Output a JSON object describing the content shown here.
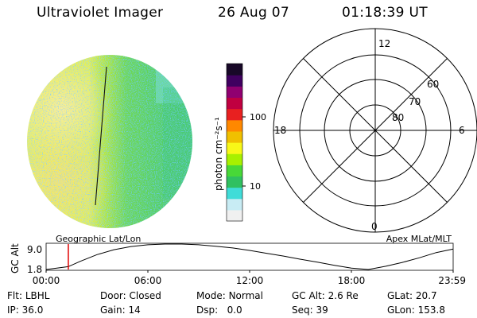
{
  "header": {
    "instrument": "Ultraviolet Imager",
    "date": "26 Aug 07",
    "time": "01:18:39 UT"
  },
  "colorbar": {
    "unit_label": "photon cm⁻²s⁻¹",
    "ticks": [
      {
        "value": 100,
        "label": "100"
      },
      {
        "value": 10,
        "label": "10"
      }
    ],
    "scale": "log",
    "colors": [
      "#f0f0f0",
      "#c8ecf4",
      "#40dcd8",
      "#30c060",
      "#48d838",
      "#a8f000",
      "#f8f818",
      "#f0c000",
      "#ff8800",
      "#e82020",
      "#c00040",
      "#900070",
      "#400060",
      "#180828"
    ]
  },
  "polar_grid": {
    "mlt_labels": {
      "top": "12",
      "left": "18",
      "right": "6",
      "bottom": "0"
    },
    "lat_labels": [
      "60",
      "70",
      "80"
    ]
  },
  "timeline": {
    "left_label": "Geographic Lat/Lon",
    "right_label": "Apex MLat/MLT",
    "y_axis_title": "GC Alt",
    "y_ticks": [
      "9.0",
      "1.8"
    ],
    "x_ticks": [
      "00:00",
      "06:00",
      "12:00",
      "18:00",
      "23:59"
    ],
    "marker_color": "#e00000"
  },
  "chart_data": {
    "type": "line",
    "title": "",
    "xlabel": "",
    "ylabel": "GC Alt",
    "xlim": [
      0,
      24
    ],
    "ylim": [
      1.8,
      9.0
    ],
    "x_tick_labels": [
      "00:00",
      "06:00",
      "12:00",
      "18:00",
      "23:59"
    ],
    "x": [
      0.0,
      1.31,
      2,
      3,
      4,
      5,
      6,
      7,
      8,
      9,
      10,
      11,
      12,
      13,
      14,
      15,
      16,
      17,
      18,
      19,
      20,
      21,
      22,
      23,
      24
    ],
    "y": [
      1.8,
      2.6,
      4.1,
      6.0,
      7.4,
      8.3,
      8.8,
      9.0,
      9.0,
      8.8,
      8.4,
      7.9,
      7.2,
      6.4,
      5.6,
      4.7,
      3.9,
      3.0,
      2.2,
      1.8,
      2.7,
      3.8,
      5.1,
      6.6,
      7.6
    ],
    "current_time": 1.31,
    "grid": false
  },
  "status": {
    "flt_label": "Flt:",
    "flt_value": "LBHL",
    "door_label": "Door:",
    "door_value": "Closed",
    "mode_label": "Mode:",
    "mode_value": "Normal",
    "gcalt_label": "GC Alt:",
    "gcalt_value": "2.6 Re",
    "glat_label": "GLat:",
    "glat_value": "20.7",
    "ip_label": "IP:",
    "ip_value": "36.0",
    "gain_label": "Gain:",
    "gain_value": "14",
    "dsp_label": "Dsp:",
    "dsp_value": "0.0",
    "seq_label": "Seq:",
    "seq_value": "39",
    "glon_label": "GLon:",
    "glon_value": "153.8"
  }
}
